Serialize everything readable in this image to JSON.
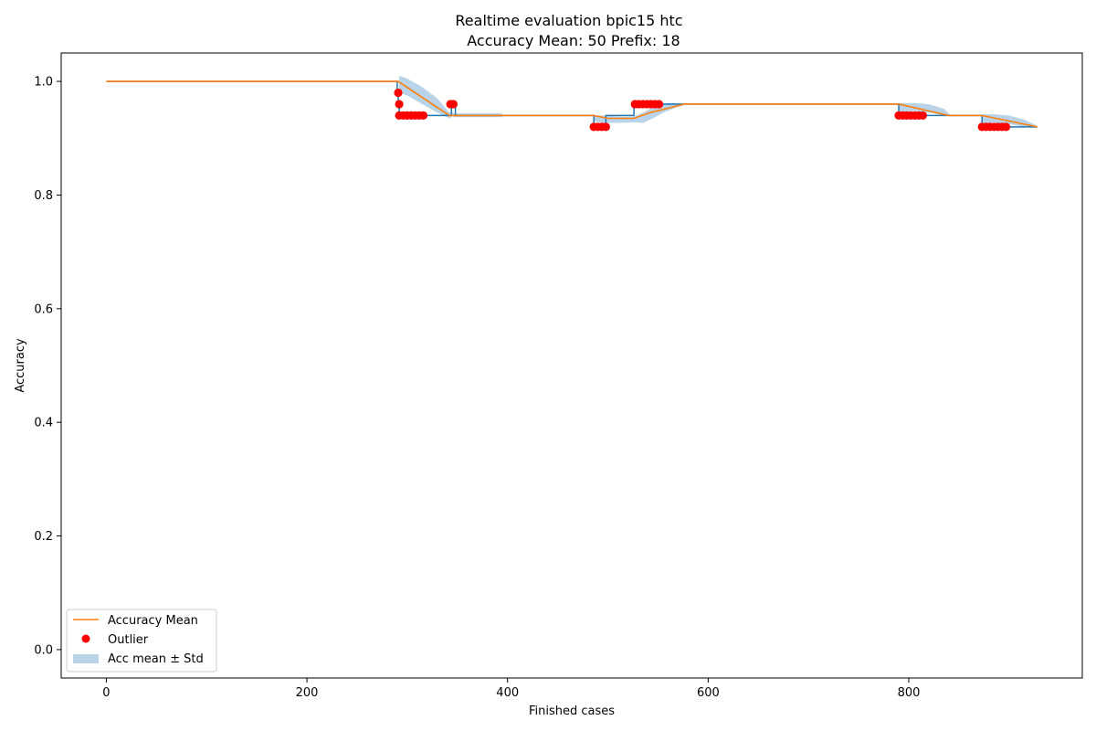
{
  "chart_data": {
    "type": "line",
    "title": "Realtime evaluation bpic15 htc",
    "subtitle": "Accuracy Mean: 50 Prefix: 18",
    "xlabel": "Finished cases",
    "ylabel": "Accuracy",
    "xlim": [
      -45,
      973
    ],
    "ylim": [
      -0.05,
      1.05
    ],
    "xticks": [
      0,
      200,
      400,
      600,
      800
    ],
    "xtick_labels": [
      "0",
      "200",
      "400",
      "600",
      "800"
    ],
    "yticks": [
      0.0,
      0.2,
      0.4,
      0.6,
      0.8,
      1.0
    ],
    "ytick_labels": [
      "0.0",
      "0.2",
      "0.4",
      "0.6",
      "0.8",
      "1.0"
    ],
    "grid": false,
    "legend_position": "lower-left",
    "colors": {
      "accuracy": "#1f77b4",
      "mean": "#ff7f0e",
      "outlier": "#ff0000",
      "band": "#b9d4e9"
    },
    "series": [
      {
        "name": "",
        "kind": "line",
        "points": [
          [
            0,
            1.0
          ],
          [
            290,
            1.0
          ],
          [
            290,
            0.98
          ],
          [
            291,
            0.98
          ],
          [
            291,
            0.96
          ],
          [
            292,
            0.96
          ],
          [
            292,
            0.94
          ],
          [
            344,
            0.94
          ],
          [
            344,
            0.96
          ],
          [
            348,
            0.96
          ],
          [
            348,
            0.94
          ],
          [
            486,
            0.94
          ],
          [
            486,
            0.92
          ],
          [
            498,
            0.92
          ],
          [
            498,
            0.94
          ],
          [
            526,
            0.94
          ],
          [
            526,
            0.96
          ],
          [
            576,
            0.96
          ],
          [
            790,
            0.96
          ],
          [
            790,
            0.94
          ],
          [
            873,
            0.94
          ],
          [
            873,
            0.92
          ],
          [
            928,
            0.92
          ]
        ]
      },
      {
        "name": "Accuracy Mean",
        "kind": "line",
        "points": [
          [
            0,
            1.0
          ],
          [
            291,
            1.0
          ],
          [
            342,
            0.94
          ],
          [
            344,
            0.94
          ],
          [
            346,
            0.94
          ],
          [
            486,
            0.94
          ],
          [
            500,
            0.935
          ],
          [
            526,
            0.935
          ],
          [
            542,
            0.945
          ],
          [
            576,
            0.96
          ],
          [
            790,
            0.96
          ],
          [
            840,
            0.94
          ],
          [
            873,
            0.94
          ],
          [
            928,
            0.92
          ]
        ]
      },
      {
        "name": "Outlier",
        "kind": "scatter",
        "points": [
          [
            291,
            0.98
          ],
          [
            292,
            0.96
          ],
          [
            292,
            0.94
          ],
          [
            296,
            0.94
          ],
          [
            300,
            0.94
          ],
          [
            304,
            0.94
          ],
          [
            308,
            0.94
          ],
          [
            312,
            0.94
          ],
          [
            316,
            0.94
          ],
          [
            343,
            0.96
          ],
          [
            346,
            0.96
          ],
          [
            486,
            0.92
          ],
          [
            490,
            0.92
          ],
          [
            494,
            0.92
          ],
          [
            498,
            0.92
          ],
          [
            527,
            0.96
          ],
          [
            531,
            0.96
          ],
          [
            535,
            0.96
          ],
          [
            539,
            0.96
          ],
          [
            543,
            0.96
          ],
          [
            547,
            0.96
          ],
          [
            551,
            0.96
          ],
          [
            790,
            0.94
          ],
          [
            794,
            0.94
          ],
          [
            798,
            0.94
          ],
          [
            802,
            0.94
          ],
          [
            806,
            0.94
          ],
          [
            810,
            0.94
          ],
          [
            814,
            0.94
          ],
          [
            873,
            0.92
          ],
          [
            877,
            0.92
          ],
          [
            881,
            0.92
          ],
          [
            885,
            0.92
          ],
          [
            889,
            0.92
          ],
          [
            893,
            0.92
          ],
          [
            897,
            0.92
          ]
        ]
      },
      {
        "name": "Acc mean ± Std",
        "kind": "band",
        "segments": [
          {
            "x": [
              292,
              300,
              315,
              330,
              342,
              346
            ],
            "y_low": [
              0.98,
              0.975,
              0.96,
              0.945,
              0.935,
              0.94
            ],
            "y_high": [
              1.01,
              1.005,
              0.99,
              0.97,
              0.945,
              0.945
            ]
          },
          {
            "x": [
              346,
              395
            ],
            "y_low": [
              0.937,
              0.937
            ],
            "y_high": [
              0.944,
              0.944
            ]
          },
          {
            "x": [
              486,
              495,
              510,
              526,
              535,
              545,
              555,
              570,
              576
            ],
            "y_low": [
              0.93,
              0.927,
              0.927,
              0.928,
              0.927,
              0.935,
              0.945,
              0.955,
              0.958
            ],
            "y_high": [
              0.94,
              0.94,
              0.938,
              0.938,
              0.945,
              0.955,
              0.962,
              0.962,
              0.962
            ]
          },
          {
            "x": [
              790,
              805,
              820,
              835,
              842
            ],
            "y_low": [
              0.945,
              0.948,
              0.945,
              0.94,
              0.938
            ],
            "y_high": [
              0.962,
              0.962,
              0.96,
              0.952,
              0.94
            ]
          },
          {
            "x": [
              873,
              885,
              900,
              915,
              928
            ],
            "y_low": [
              0.925,
              0.928,
              0.925,
              0.92,
              0.918
            ],
            "y_high": [
              0.942,
              0.942,
              0.94,
              0.933,
              0.922
            ]
          }
        ]
      }
    ],
    "legend": [
      {
        "label": "Accuracy Mean",
        "kind": "line"
      },
      {
        "label": "Outlier",
        "kind": "marker"
      },
      {
        "label": "Acc mean ± Std",
        "kind": "patch"
      }
    ]
  }
}
